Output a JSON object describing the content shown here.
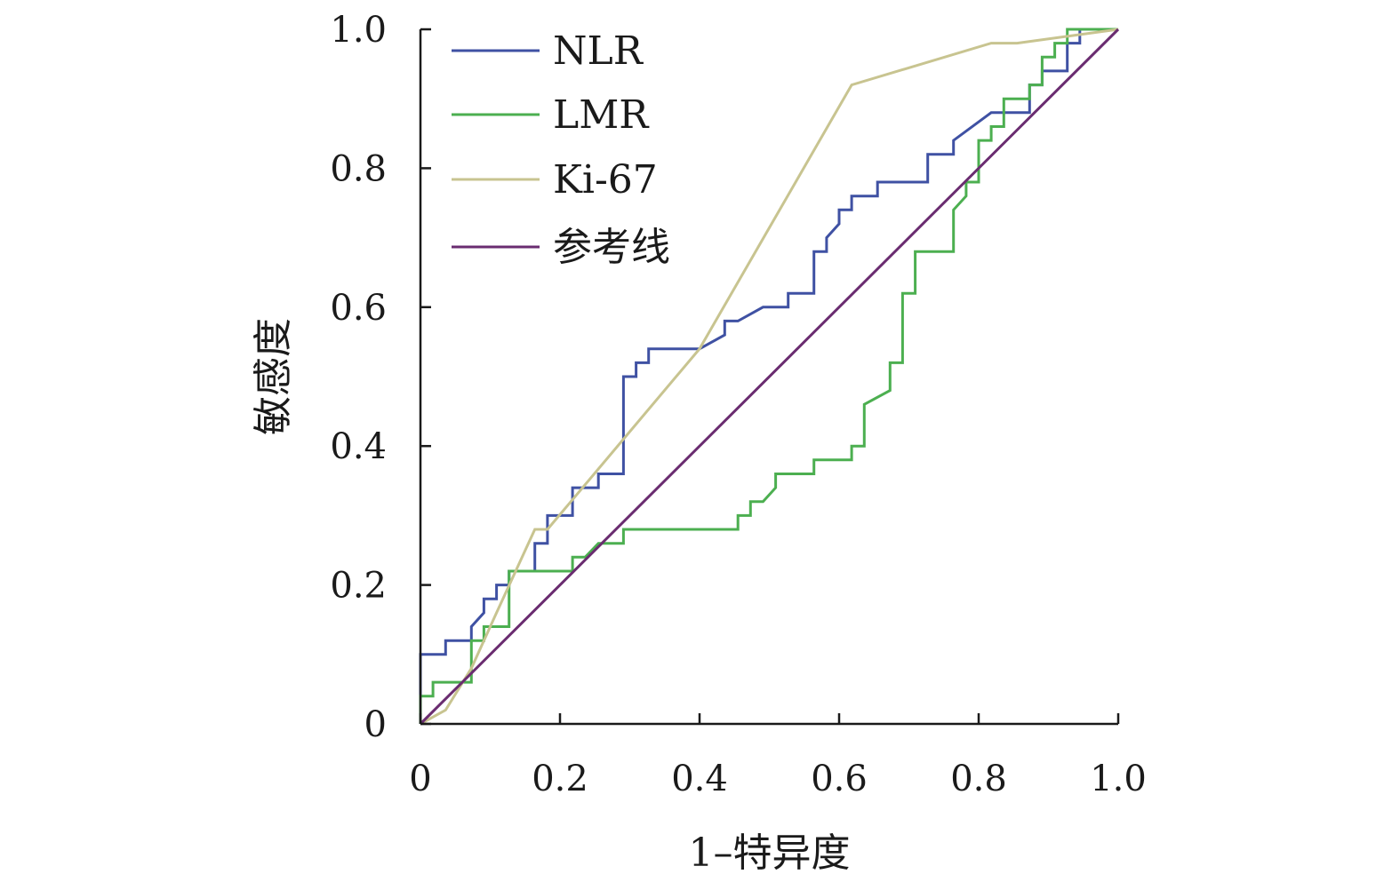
{
  "chart_data": {
    "type": "line",
    "xlabel": "1–特异度",
    "ylabel": "敏感度",
    "xlim": [
      0,
      1
    ],
    "ylim": [
      0,
      1
    ],
    "x_ticks": [
      "0",
      "0.2",
      "0.4",
      "0.6",
      "0.8",
      "1.0"
    ],
    "y_ticks": [
      "0",
      "0.2",
      "0.4",
      "0.6",
      "0.8",
      "1.0"
    ],
    "grid": false,
    "legend_position": "top-left",
    "series": [
      {
        "name": "NLR",
        "color": "#3f51a3",
        "x": [
          0,
          0,
          0.036,
          0.036,
          0.073,
          0.073,
          0.091,
          0.091,
          0.109,
          0.109,
          0.127,
          0.127,
          0.164,
          0.164,
          0.182,
          0.182,
          0.218,
          0.218,
          0.255,
          0.255,
          0.291,
          0.291,
          0.309,
          0.309,
          0.327,
          0.327,
          0.4,
          0.436,
          0.436,
          0.455,
          0.491,
          0.527,
          0.527,
          0.564,
          0.564,
          0.582,
          0.582,
          0.6,
          0.6,
          0.618,
          0.618,
          0.655,
          0.655,
          0.727,
          0.727,
          0.764,
          0.764,
          0.818,
          0.873,
          0.873,
          0.891,
          0.891,
          0.927,
          0.927,
          0.945,
          0.945,
          1.0
        ],
        "y": [
          0.04,
          0.1,
          0.1,
          0.12,
          0.12,
          0.14,
          0.16,
          0.18,
          0.18,
          0.2,
          0.2,
          0.22,
          0.22,
          0.26,
          0.26,
          0.3,
          0.3,
          0.34,
          0.34,
          0.36,
          0.36,
          0.5,
          0.5,
          0.52,
          0.52,
          0.54,
          0.54,
          0.56,
          0.58,
          0.58,
          0.6,
          0.6,
          0.62,
          0.62,
          0.68,
          0.68,
          0.7,
          0.72,
          0.74,
          0.74,
          0.76,
          0.76,
          0.78,
          0.78,
          0.82,
          0.82,
          0.84,
          0.88,
          0.88,
          0.92,
          0.92,
          0.94,
          0.94,
          0.98,
          0.98,
          1.0,
          1.0
        ]
      },
      {
        "name": "LMR",
        "color": "#4caf50",
        "x": [
          0,
          0,
          0.018,
          0.018,
          0.036,
          0.036,
          0.073,
          0.073,
          0.091,
          0.091,
          0.127,
          0.127,
          0.2,
          0.2,
          0.218,
          0.218,
          0.236,
          0.255,
          0.291,
          0.291,
          0.455,
          0.455,
          0.473,
          0.473,
          0.491,
          0.509,
          0.509,
          0.564,
          0.564,
          0.618,
          0.618,
          0.636,
          0.636,
          0.673,
          0.673,
          0.691,
          0.691,
          0.709,
          0.709,
          0.764,
          0.764,
          0.782,
          0.782,
          0.8,
          0.8,
          0.818,
          0.818,
          0.836,
          0.836,
          0.873,
          0.873,
          0.891,
          0.891,
          0.909,
          0.909,
          0.927,
          0.927,
          0.945,
          1.0
        ],
        "y": [
          0,
          0.04,
          0.04,
          0.06,
          0.06,
          0.06,
          0.06,
          0.12,
          0.12,
          0.14,
          0.14,
          0.22,
          0.22,
          0.22,
          0.22,
          0.24,
          0.24,
          0.26,
          0.26,
          0.28,
          0.28,
          0.3,
          0.3,
          0.32,
          0.32,
          0.34,
          0.36,
          0.36,
          0.38,
          0.38,
          0.4,
          0.4,
          0.46,
          0.48,
          0.52,
          0.52,
          0.62,
          0.62,
          0.68,
          0.68,
          0.74,
          0.76,
          0.78,
          0.78,
          0.84,
          0.84,
          0.86,
          0.86,
          0.9,
          0.9,
          0.92,
          0.92,
          0.96,
          0.96,
          0.98,
          0.98,
          1.0,
          1.0,
          1.0
        ]
      },
      {
        "name": "Ki-67",
        "color": "#c8c490",
        "x": [
          0,
          0.036,
          0.073,
          0.109,
          0.164,
          0.182,
          0.4,
          0.618,
          0.818,
          0.855,
          1.0
        ],
        "y": [
          0,
          0.02,
          0.08,
          0.16,
          0.28,
          0.28,
          0.54,
          0.92,
          0.98,
          0.98,
          1.0
        ]
      },
      {
        "name": "参考线",
        "color": "#6a2c70",
        "x": [
          0,
          1.0
        ],
        "y": [
          0,
          1.0
        ]
      }
    ]
  }
}
